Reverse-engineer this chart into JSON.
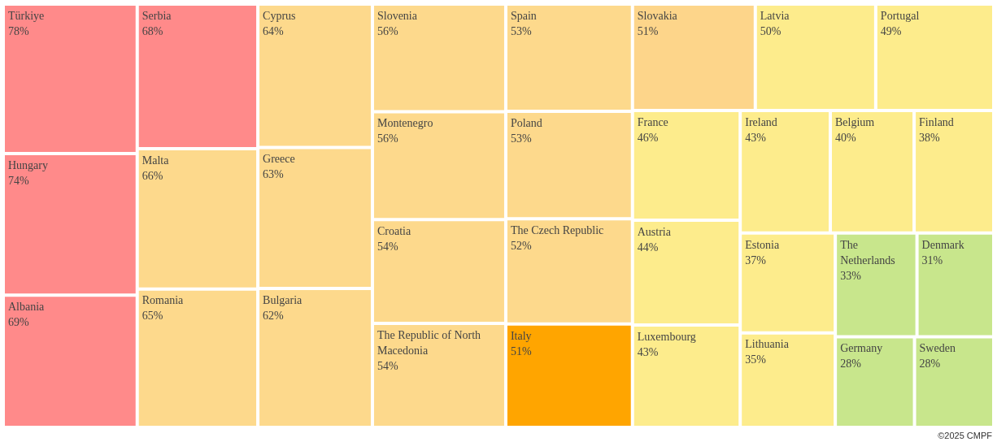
{
  "chart_data": {
    "type": "other",
    "categories": [
      "Türkiye",
      "Hungary",
      "Albania",
      "Serbia",
      "Malta",
      "Romania",
      "Cyprus",
      "Greece",
      "Bulgaria",
      "Slovenia",
      "Montenegro",
      "Croatia",
      "The Republic of North Macedonia",
      "Spain",
      "Poland",
      "The Czech Republic",
      "Italy",
      "Slovakia",
      "Latvia",
      "Portugal",
      "France",
      "Austria",
      "Luxembourg",
      "Ireland",
      "Belgium",
      "Finland",
      "Estonia",
      "Lithuania",
      "The Netherlands",
      "Denmark",
      "Germany",
      "Sweden"
    ],
    "values": [
      78,
      74,
      69,
      68,
      66,
      65,
      64,
      63,
      62,
      56,
      56,
      54,
      54,
      53,
      53,
      52,
      51,
      51,
      50,
      49,
      46,
      44,
      43,
      43,
      40,
      38,
      37,
      35,
      33,
      31,
      28,
      28
    ],
    "value_labels": [
      "78%",
      "74%",
      "69%",
      "68%",
      "66%",
      "65%",
      "64%",
      "63%",
      "62%",
      "56%",
      "56%",
      "54%",
      "54%",
      "53%",
      "53%",
      "52%",
      "51%",
      "51%",
      "50%",
      "49%",
      "46%",
      "44%",
      "43%",
      "43%",
      "40%",
      "38%",
      "37%",
      "35%",
      "33%",
      "31%",
      "28%",
      "28%"
    ],
    "colors": [
      "#ff8a8a",
      "#ff8a8a",
      "#ff8a8a",
      "#ff8a8a",
      "#fdd98c",
      "#fdd98c",
      "#fdd98c",
      "#fdd98c",
      "#fdd98c",
      "#fdd98c",
      "#fdd98c",
      "#fdd98c",
      "#fdd98c",
      "#fdd98c",
      "#fdd98c",
      "#fdd98c",
      "#ffa500",
      "#fdd58a",
      "#fdec8c",
      "#fdec8c",
      "#fdec8c",
      "#fdec8c",
      "#fdec8c",
      "#fdec8c",
      "#fdec8c",
      "#fdec8c",
      "#fdec8c",
      "#fdec8c",
      "#c8e68c",
      "#c8e68c",
      "#c8e68c",
      "#c8e68c"
    ],
    "annotations": [
      "©2025 CMPF"
    ]
  }
}
